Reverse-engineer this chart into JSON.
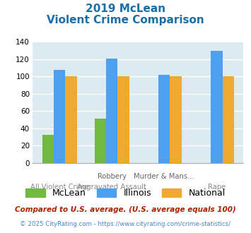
{
  "title_line1": "2019 McLean",
  "title_line2": "Violent Crime Comparison",
  "top_labels": [
    "",
    "Robbery",
    "Murder & Mans...",
    ""
  ],
  "bot_labels": [
    "All Violent Crime",
    "Aggravated Assault",
    "",
    "Rape"
  ],
  "mclean": [
    33,
    51,
    0,
    0
  ],
  "illinois": [
    108,
    121,
    102,
    130
  ],
  "national": [
    100,
    100,
    100,
    100
  ],
  "mclean_color": "#72b944",
  "illinois_color": "#4da0f0",
  "national_color": "#f0a830",
  "bg_color": "#ddeaf0",
  "ylim": [
    0,
    140
  ],
  "yticks": [
    0,
    20,
    40,
    60,
    80,
    100,
    120,
    140
  ],
  "title_color": "#1a6fa8",
  "legend_labels": [
    "McLean",
    "Illinois",
    "National"
  ],
  "footnote1": "Compared to U.S. average. (U.S. average equals 100)",
  "footnote2": "© 2025 CityRating.com - https://www.cityrating.com/crime-statistics/",
  "footnote1_color": "#aa2200",
  "footnote2_color": "#4488cc",
  "footnote2_prefix_color": "#888888"
}
